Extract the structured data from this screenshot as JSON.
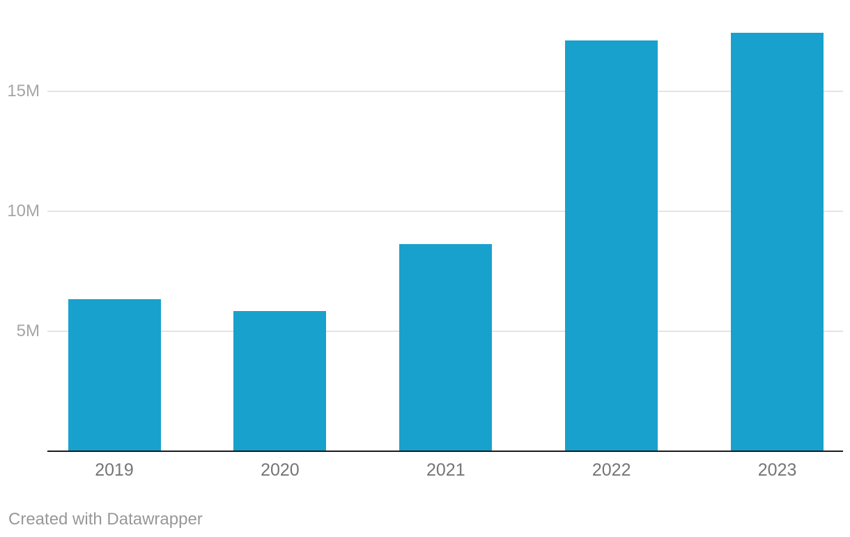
{
  "chart_data": {
    "type": "bar",
    "title": "",
    "xlabel": "",
    "ylabel": "",
    "categories": [
      "2019",
      "2020",
      "2021",
      "2022",
      "2023"
    ],
    "values": [
      6.3,
      5.8,
      8.6,
      17.1,
      17.4
    ],
    "unit": "M",
    "ylim": [
      0,
      17.5
    ],
    "yticks": [
      {
        "label": "5M",
        "value": 5
      },
      {
        "label": "10M",
        "value": 10
      },
      {
        "label": "15M",
        "value": 15
      }
    ],
    "grid": "horizontal",
    "legend": "none",
    "baseline_value": 0
  },
  "colors": {
    "background": "#ffffff",
    "bar": "#18a1cd",
    "axis_line": "#1a1a1a",
    "gridline": "#e4e4e4",
    "ytick_label": "#a5a5a5",
    "xtick_label": "#757575",
    "footer_text": "#989898"
  },
  "footer": {
    "text": "Created with Datawrapper"
  }
}
